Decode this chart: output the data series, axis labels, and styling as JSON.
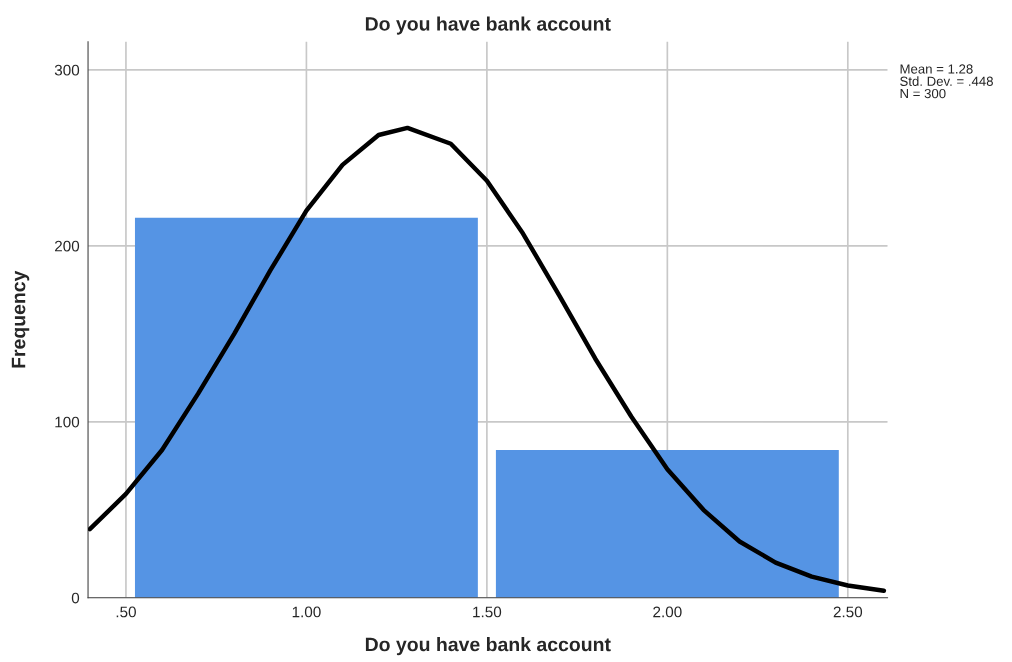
{
  "chart_data": {
    "type": "histogram",
    "title": "Do you have bank account",
    "xlabel": "Do you have bank account",
    "ylabel": "Frequency",
    "bins": [
      0.5,
      1.5,
      2.5
    ],
    "values": [
      216,
      84
    ],
    "color": "#5594e4",
    "series": [
      {
        "type": "line",
        "color": "#000000",
        "x": [
          0.4,
          0.5,
          0.6,
          0.7,
          0.8,
          0.9,
          1.0,
          1.1,
          1.2,
          1.28,
          1.4,
          1.5,
          1.6,
          1.7,
          1.8,
          1.9,
          2.0,
          2.1,
          2.2,
          2.3,
          2.4,
          2.5,
          2.6
        ],
        "values": [
          39,
          59,
          84,
          116,
          150,
          186,
          220,
          246,
          263,
          267,
          258,
          237,
          207,
          172,
          136,
          103,
          73,
          50,
          32,
          20,
          12,
          7,
          4
        ]
      }
    ],
    "xlim": [
      0.395,
      2.61
    ],
    "ylim": [
      0,
      316
    ],
    "xticks": [
      {
        "value": 0.5,
        "label": ".50"
      },
      {
        "value": 1.0,
        "label": "1.00"
      },
      {
        "value": 1.5,
        "label": "1.50"
      },
      {
        "value": 2.0,
        "label": "2.00"
      },
      {
        "value": 2.5,
        "label": "2.50"
      }
    ],
    "yticks": [
      0,
      100,
      200,
      300
    ],
    "grid": true,
    "annotations": [
      "Mean = 1.28",
      "Std. Dev. = .448",
      "N = 300"
    ]
  }
}
